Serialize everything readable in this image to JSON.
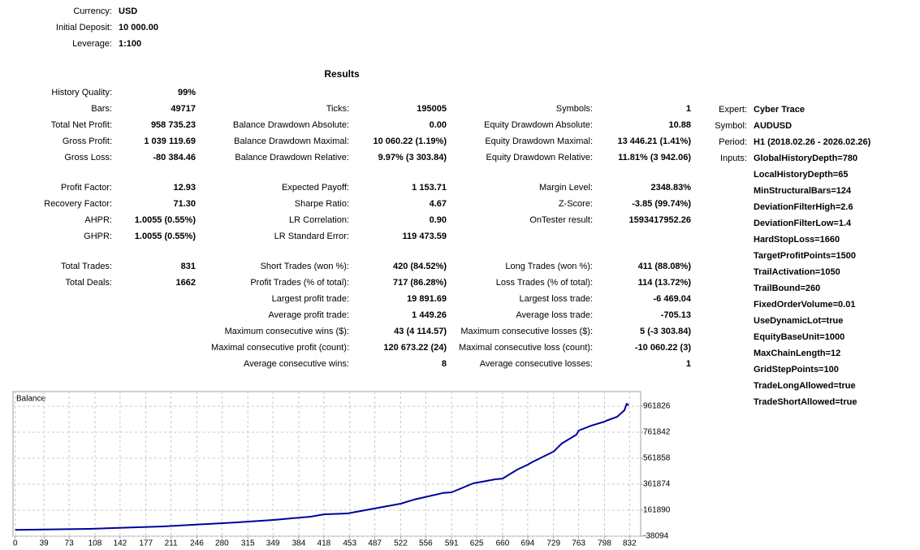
{
  "header": [
    {
      "label": "Currency:",
      "value": "USD"
    },
    {
      "label": "Initial Deposit:",
      "value": "10 000.00"
    },
    {
      "label": "Leverage:",
      "value": "1:100"
    }
  ],
  "results_title": "Results",
  "results": [
    [
      [
        {
          "label": "History Quality:",
          "value": "99%"
        },
        null,
        null
      ],
      [
        {
          "label": "Bars:",
          "value": "49717"
        },
        {
          "label": "Ticks:",
          "value": "195005"
        },
        {
          "label": "Symbols:",
          "value": "1"
        }
      ],
      [
        {
          "label": "Total Net Profit:",
          "value": "958 735.23"
        },
        {
          "label": "Balance Drawdown Absolute:",
          "value": "0.00"
        },
        {
          "label": "Equity Drawdown Absolute:",
          "value": "10.88"
        }
      ],
      [
        {
          "label": "Gross Profit:",
          "value": "1 039 119.69"
        },
        {
          "label": "Balance Drawdown Maximal:",
          "value": "10 060.22 (1.19%)"
        },
        {
          "label": "Equity Drawdown Maximal:",
          "value": "13 446.21 (1.41%)"
        }
      ],
      [
        {
          "label": "Gross Loss:",
          "value": "-80 384.46"
        },
        {
          "label": "Balance Drawdown Relative:",
          "value": "9.97% (3 303.84)"
        },
        {
          "label": "Equity Drawdown Relative:",
          "value": "11.81% (3 942.06)"
        }
      ]
    ],
    [
      [
        {
          "label": "Profit Factor:",
          "value": "12.93"
        },
        {
          "label": "Expected Payoff:",
          "value": "1 153.71"
        },
        {
          "label": "Margin Level:",
          "value": "2348.83%"
        }
      ],
      [
        {
          "label": "Recovery Factor:",
          "value": "71.30"
        },
        {
          "label": "Sharpe Ratio:",
          "value": "4.67"
        },
        {
          "label": "Z-Score:",
          "value": "-3.85 (99.74%)"
        }
      ],
      [
        {
          "label": "AHPR:",
          "value": "1.0055 (0.55%)"
        },
        {
          "label": "LR Correlation:",
          "value": "0.90"
        },
        {
          "label": "OnTester result:",
          "value": "1593417952.26"
        }
      ],
      [
        {
          "label": "GHPR:",
          "value": "1.0055 (0.55%)"
        },
        {
          "label": "LR Standard Error:",
          "value": "119 473.59"
        },
        null
      ]
    ],
    [
      [
        {
          "label": "Total Trades:",
          "value": "831"
        },
        {
          "label": "Short Trades (won %):",
          "value": "420 (84.52%)"
        },
        {
          "label": "Long Trades (won %):",
          "value": "411 (88.08%)"
        }
      ],
      [
        {
          "label": "Total Deals:",
          "value": "1662"
        },
        {
          "label": "Profit Trades (% of total):",
          "value": "717 (86.28%)"
        },
        {
          "label": "Loss Trades (% of total):",
          "value": "114 (13.72%)"
        }
      ],
      [
        null,
        {
          "label": "Largest profit trade:",
          "value": "19 891.69"
        },
        {
          "label": "Largest loss trade:",
          "value": "-6 469.04"
        }
      ],
      [
        null,
        {
          "label": "Average profit trade:",
          "value": "1 449.26"
        },
        {
          "label": "Average loss trade:",
          "value": "-705.13"
        }
      ],
      [
        null,
        {
          "label": "Maximum consecutive wins ($):",
          "value": "43 (4 114.57)"
        },
        {
          "label": "Maximum consecutive losses ($):",
          "value": "5 (-3 303.84)"
        }
      ],
      [
        null,
        {
          "label": "Maximal consecutive profit (count):",
          "value": "120 673.22 (24)"
        },
        {
          "label": "Maximal consecutive loss (count):",
          "value": "-10 060.22 (3)"
        }
      ],
      [
        null,
        {
          "label": "Average consecutive wins:",
          "value": "8"
        },
        {
          "label": "Average consecutive losses:",
          "value": "1"
        }
      ]
    ]
  ],
  "expert": [
    {
      "label": "Expert:",
      "value": "Cyber Trace"
    },
    {
      "label": "Symbol:",
      "value": "AUDUSD"
    },
    {
      "label": "Period:",
      "value": "H1 (2018.02.26 - 2026.02.26)"
    }
  ],
  "inputs_label": "Inputs:",
  "inputs": [
    "GlobalHistoryDepth=780",
    "LocalHistoryDepth=65",
    "MinStructuralBars=124",
    "DeviationFilterHigh=2.6",
    "DeviationFilterLow=1.4",
    "HardStopLoss=1660",
    "TargetProfitPoints=1500",
    "TrailActivation=1050",
    "TrailBound=260",
    "FixedOrderVolume=0.01",
    "UseDynamicLot=true",
    "EquityBaseUnit=1000",
    "MaxChainLength=12",
    "GridStepPoints=100",
    "TradeLongAllowed=true",
    "TradeShortAllowed=true"
  ],
  "chart_data": {
    "type": "line",
    "title": "Balance",
    "color": "#00009c",
    "grid": true,
    "x": [
      0,
      100,
      200,
      300,
      350,
      400,
      418,
      450,
      480,
      522,
      540,
      580,
      591,
      620,
      650,
      660,
      680,
      694,
      700,
      720,
      729,
      740,
      760,
      763,
      780,
      798,
      800,
      815,
      825,
      828,
      831
    ],
    "values": [
      10000,
      18000,
      37000,
      68000,
      87000,
      112000,
      130000,
      137000,
      168000,
      212000,
      243000,
      295000,
      299000,
      368000,
      399000,
      405000,
      474000,
      512000,
      531000,
      587000,
      612000,
      674000,
      743000,
      774000,
      812000,
      843000,
      849000,
      880000,
      930000,
      980000,
      968735
    ],
    "xlim": [
      -3,
      847
    ],
    "ylim": [
      -38094,
      1074000
    ],
    "xticks": [
      0,
      39,
      73,
      108,
      142,
      177,
      211,
      246,
      280,
      315,
      349,
      384,
      418,
      453,
      487,
      522,
      556,
      591,
      625,
      660,
      694,
      729,
      763,
      798,
      832
    ],
    "yticks": [
      -38094,
      161890,
      361874,
      561858,
      761842,
      961826
    ]
  }
}
